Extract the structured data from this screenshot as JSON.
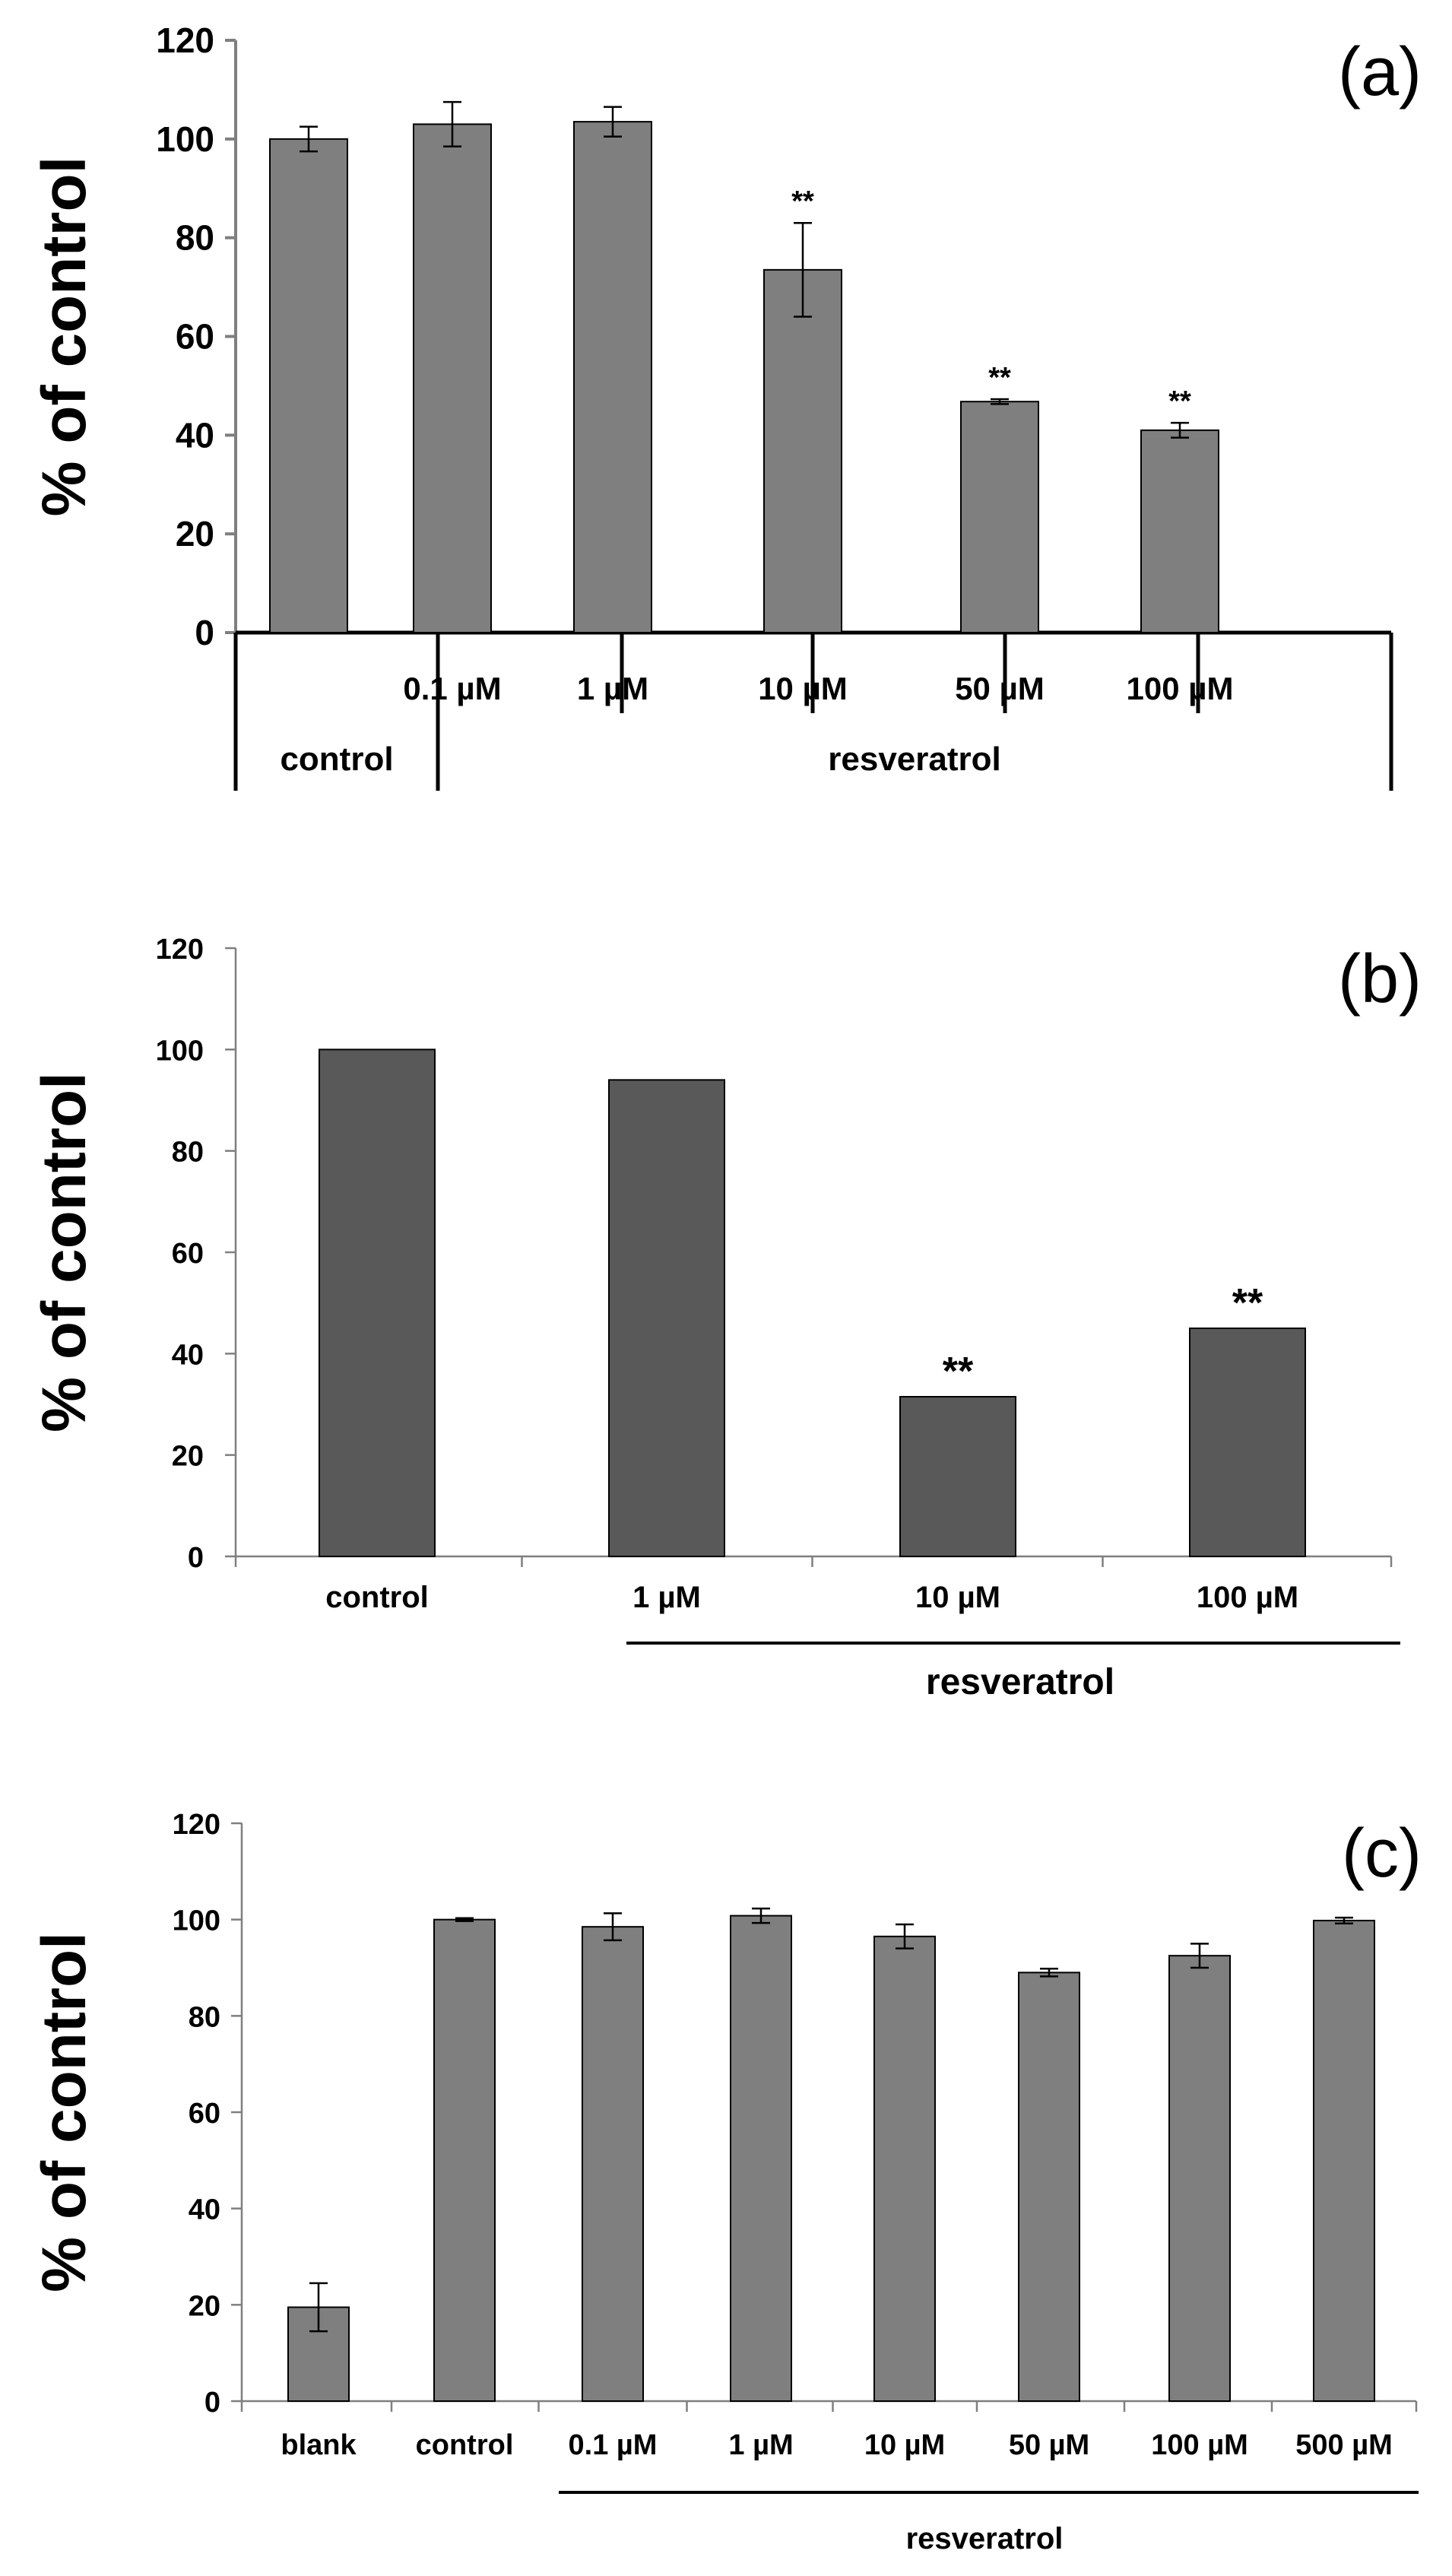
{
  "chart_data": [
    {
      "type": "bar",
      "panel_label": "(a)",
      "ylabel": "% of control",
      "ylim": [
        0,
        120
      ],
      "yticks": [
        "0",
        "20",
        "40",
        "60",
        "80",
        "100",
        "120"
      ],
      "categories": [
        "control",
        "0.1 µM",
        "1 µM",
        "10 µM",
        "50 µM",
        "100 µM"
      ],
      "values": [
        100,
        103,
        103.5,
        73.5,
        46.8,
        41
      ],
      "errors": [
        2.5,
        4.5,
        3,
        9.5,
        0.5,
        1.5
      ],
      "annotations": [
        "",
        "",
        "",
        "**",
        "**",
        "**"
      ],
      "group_labels": [
        "control",
        "resveratrol"
      ],
      "color": "#7f7f7f"
    },
    {
      "type": "bar",
      "panel_label": "(b)",
      "ylabel": "% of control",
      "ylim": [
        0,
        120
      ],
      "yticks": [
        "0",
        "20",
        "40",
        "60",
        "80",
        "100",
        "120"
      ],
      "categories": [
        "control",
        "1 µM",
        "10 µM",
        "100 µM"
      ],
      "values": [
        100,
        94,
        31.5,
        45
      ],
      "errors": [
        0,
        0,
        0,
        0
      ],
      "annotations": [
        "",
        "",
        "**",
        "**"
      ],
      "group_labels": [
        "resveratrol"
      ],
      "color": "#595959"
    },
    {
      "type": "bar",
      "panel_label": "(c)",
      "ylabel": "% of control",
      "ylim": [
        0,
        120
      ],
      "yticks": [
        "0",
        "20",
        "40",
        "60",
        "80",
        "100",
        "120"
      ],
      "categories": [
        "blank",
        "control",
        "0.1 µM",
        "1 µM",
        "10 µM",
        "50 µM",
        "100 µM",
        "500 µM"
      ],
      "values": [
        19.5,
        100,
        98.5,
        100.8,
        96.5,
        89,
        92.5,
        99.8
      ],
      "errors": [
        5,
        0.3,
        2.8,
        1.5,
        2.5,
        0.8,
        2.5,
        0.6
      ],
      "annotations": [
        "",
        "",
        "",
        "",
        "",
        "",
        "",
        ""
      ],
      "group_labels": [
        "resveratrol"
      ],
      "color": "#7f7f7f"
    }
  ]
}
